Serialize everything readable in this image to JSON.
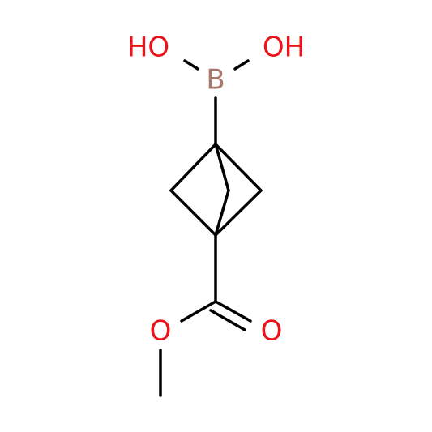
{
  "atoms": [
    {
      "label": "HO"
    },
    {
      "label": "OH"
    },
    {
      "label": "B"
    },
    {
      "label": "O"
    },
    {
      "label": "O"
    }
  ]
}
